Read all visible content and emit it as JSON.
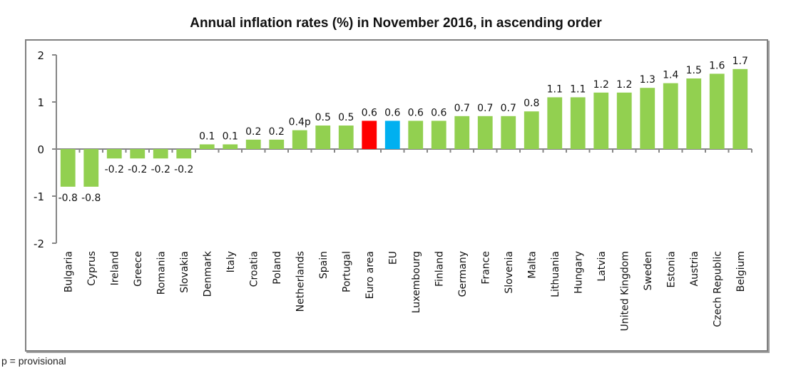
{
  "chart_data": {
    "type": "bar",
    "title": "Annual inflation rates (%) in November 2016, in ascending order",
    "xlabel": "",
    "ylabel": "",
    "ylim": [
      -2,
      2
    ],
    "yticks": [
      2,
      1,
      0,
      -1,
      -2
    ],
    "grid": false,
    "legend": "none",
    "categories": [
      "Bulgaria",
      "Cyprus",
      "Ireland",
      "Greece",
      "Romania",
      "Slovakia",
      "Denmark",
      "Italy",
      "Croatia",
      "Poland",
      "Netherlands",
      "Spain",
      "Portugal",
      "Euro area",
      "EU",
      "Luxembourg",
      "Finland",
      "Germany",
      "France",
      "Slovenia",
      "Malta",
      "Lithuania",
      "Hungary",
      "Latvia",
      "United Kingdom",
      "Sweden",
      "Estonia",
      "Austria",
      "Czech Republic",
      "Belgium"
    ],
    "values": [
      -0.8,
      -0.8,
      -0.2,
      -0.2,
      -0.2,
      -0.2,
      0.1,
      0.1,
      0.2,
      0.2,
      0.4,
      0.5,
      0.5,
      0.6,
      0.6,
      0.6,
      0.6,
      0.7,
      0.7,
      0.7,
      0.8,
      1.1,
      1.1,
      1.2,
      1.2,
      1.3,
      1.4,
      1.5,
      1.6,
      1.7
    ],
    "data_labels": [
      "-0.8",
      "-0.8",
      "-0.2",
      "-0.2",
      "-0.2",
      "-0.2",
      "0.1",
      "0.1",
      "0.2",
      "0.2",
      "0.4p",
      "0.5",
      "0.5",
      "0.6",
      "0.6",
      "0.6",
      "0.6",
      "0.7",
      "0.7",
      "0.7",
      "0.8",
      "1.1",
      "1.1",
      "1.2",
      "1.2",
      "1.3",
      "1.4",
      "1.5",
      "1.6",
      "1.7"
    ],
    "colors": {
      "default": "#92d050",
      "Euro area": "#ff0000",
      "EU": "#00b0f0"
    }
  },
  "footnote": "p = provisional"
}
